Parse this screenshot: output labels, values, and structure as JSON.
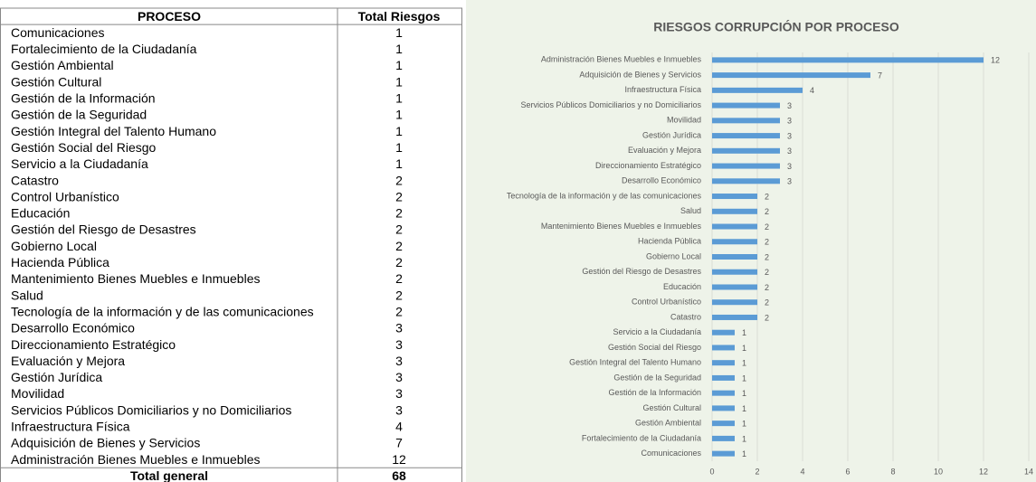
{
  "table": {
    "header": [
      "PROCESO",
      "Total Riesgos"
    ],
    "rows": [
      [
        "Comunicaciones",
        1
      ],
      [
        "Fortalecimiento de la Ciudadanía",
        1
      ],
      [
        "Gestión Ambiental",
        1
      ],
      [
        "Gestión Cultural",
        1
      ],
      [
        "Gestión de la Información",
        1
      ],
      [
        "Gestión de la Seguridad",
        1
      ],
      [
        "Gestión Integral del Talento Humano",
        1
      ],
      [
        "Gestión Social del Riesgo",
        1
      ],
      [
        "Servicio a la Ciudadanía",
        1
      ],
      [
        "Catastro",
        2
      ],
      [
        "Control Urbanístico",
        2
      ],
      [
        "Educación",
        2
      ],
      [
        "Gestión del Riesgo de Desastres",
        2
      ],
      [
        "Gobierno Local",
        2
      ],
      [
        "Hacienda Pública",
        2
      ],
      [
        "Mantenimiento Bienes Muebles e Inmuebles",
        2
      ],
      [
        "Salud",
        2
      ],
      [
        "Tecnología de la información y de las comunicaciones",
        2
      ],
      [
        "Desarrollo Económico",
        3
      ],
      [
        "Direccionamiento Estratégico",
        3
      ],
      [
        "Evaluación y Mejora",
        3
      ],
      [
        "Gestión Jurídica",
        3
      ],
      [
        "Movilidad",
        3
      ],
      [
        "Servicios Públicos Domiciliarios y no Domiciliarios",
        3
      ],
      [
        "Infraestructura Física",
        4
      ],
      [
        "Adquisición de Bienes y Servicios",
        7
      ],
      [
        "Administración Bienes Muebles e Inmuebles",
        12
      ]
    ],
    "total": [
      "Total general",
      68
    ]
  },
  "chart_data": {
    "type": "hbar",
    "title": "RIESGOS CORRUPCIÓN POR PROCESO",
    "categories": [
      "Administración Bienes Muebles e Inmuebles",
      "Adquisición de Bienes y Servicios",
      "Infraestructura Física",
      "Servicios Públicos Domiciliarios y no Domiciliarios",
      "Movilidad",
      "Gestión Jurídica",
      "Evaluación y Mejora",
      "Direccionamiento Estratégico",
      "Desarrollo Económico",
      "Tecnología de la información y de las comunicaciones",
      "Salud",
      "Mantenimiento Bienes Muebles e Inmuebles",
      "Hacienda Pública",
      "Gobierno Local",
      "Gestión del Riesgo de Desastres",
      "Educación",
      "Control Urbanístico",
      "Catastro",
      "Servicio a la Ciudadanía",
      "Gestión Social del Riesgo",
      "Gestión Integral del Talento Humano",
      "Gestión de la Seguridad",
      "Gestión de la Información",
      "Gestión Cultural",
      "Gestión Ambiental",
      "Fortalecimiento de la Ciudadanía",
      "Comunicaciones"
    ],
    "values": [
      12,
      7,
      4,
      3,
      3,
      3,
      3,
      3,
      3,
      2,
      2,
      2,
      2,
      2,
      2,
      2,
      2,
      2,
      1,
      1,
      1,
      1,
      1,
      1,
      1,
      1,
      1
    ],
    "color": "#5b9bd5",
    "xlim": [
      0,
      14
    ],
    "xticks": [
      0,
      2,
      4,
      6,
      8,
      10,
      12,
      14
    ],
    "grid": true
  }
}
